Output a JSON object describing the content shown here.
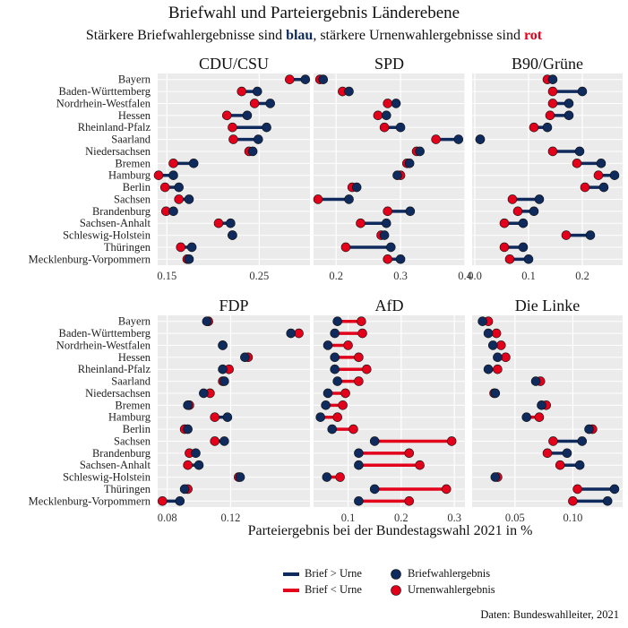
{
  "title": "Briefwahl und Parteiergebnis Länderebene",
  "subtitle": {
    "prefix": "Stärkere Briefwahlergebnisse sind ",
    "blue_word": "blau",
    "middle": ", stärkere Urnenwahlergebnisse sind ",
    "red_word": "rot"
  },
  "caption": "Daten: Bundeswahlleiter, 2021",
  "legend": {
    "line_blue_label": "Brief > Urne",
    "line_red_label": "Brief < Urne",
    "point_blue_label": "Briefwahlergebnis",
    "point_red_label": "Urnenwahlergebnis"
  },
  "colors": {
    "brief": "#0f2a5c",
    "urne": "#e3001b",
    "panel_bg": "#ebebeb",
    "grid": "#ffffff"
  },
  "chart_data": {
    "type": "dumbbell",
    "xlabel": "Parteiergebnis bei der Bundestagswahl 2021 in %",
    "states": [
      "Bayern",
      "Baden-Württemberg",
      "Nordrhein-Westfalen",
      "Hessen",
      "Rheinland-Pfalz",
      "Saarland",
      "Niedersachsen",
      "Bremen",
      "Hamburg",
      "Berlin",
      "Sachsen",
      "Brandenburg",
      "Sachsen-Anhalt",
      "Schleswig-Holstein",
      "Thüringen",
      "Mecklenburg-Vorpommern"
    ],
    "panels": [
      {
        "name": "CDU/CSU",
        "xlim": [
          0.14,
          0.305
        ],
        "ticks": [
          0.15,
          0.25
        ],
        "tick_labels": [
          "0.15",
          "0.25"
        ],
        "brief": [
          0.3,
          0.248,
          0.262,
          0.237,
          0.258,
          0.249,
          0.243,
          0.179,
          0.157,
          0.163,
          0.174,
          0.157,
          0.219,
          0.221,
          0.177,
          0.174
        ],
        "urne": [
          0.283,
          0.231,
          0.245,
          0.215,
          0.221,
          0.222,
          0.239,
          0.157,
          0.141,
          0.148,
          0.163,
          0.149,
          0.206,
          0.221,
          0.165,
          0.172
        ]
      },
      {
        "name": "SPD",
        "xlim": [
          0.165,
          0.4
        ],
        "ticks": [
          0.2,
          0.3,
          0.4
        ],
        "tick_labels": [
          "0.2",
          "0.3",
          "0.4"
        ],
        "brief": [
          0.18,
          0.22,
          0.293,
          0.278,
          0.3,
          0.39,
          0.33,
          0.314,
          0.295,
          0.232,
          0.22,
          0.315,
          0.278,
          0.275,
          0.285,
          0.3
        ],
        "urne": [
          0.175,
          0.21,
          0.28,
          0.265,
          0.275,
          0.355,
          0.325,
          0.31,
          0.3,
          0.225,
          0.172,
          0.28,
          0.238,
          0.27,
          0.215,
          0.28
        ]
      },
      {
        "name": "B90/Grüne",
        "xlim": [
          -0.005,
          0.275
        ],
        "ticks": [
          0.0,
          0.1,
          0.2
        ],
        "tick_labels": [
          "0.0",
          "0.1",
          "0.2"
        ],
        "brief": [
          0.145,
          0.2,
          0.175,
          0.175,
          0.135,
          0.01,
          0.195,
          0.235,
          0.26,
          0.24,
          0.12,
          0.11,
          0.09,
          0.215,
          0.09,
          0.1
        ],
        "urne": [
          0.135,
          0.145,
          0.145,
          0.14,
          0.11,
          0.01,
          0.145,
          0.19,
          0.23,
          0.205,
          0.07,
          0.08,
          0.055,
          0.17,
          0.055,
          0.065
        ]
      }
    ],
    "panels_row2": [
      {
        "name": "FDP",
        "xlim": [
          0.074,
          0.17
        ],
        "ticks": [
          0.08,
          0.12
        ],
        "tick_labels": [
          "0.08",
          "0.12"
        ],
        "brief": [
          0.105,
          0.158,
          0.115,
          0.129,
          0.115,
          0.116,
          0.103,
          0.093,
          0.118,
          0.093,
          0.116,
          0.098,
          0.1,
          0.126,
          0.091,
          0.088
        ],
        "urne": [
          0.106,
          0.163,
          0.115,
          0.131,
          0.119,
          0.115,
          0.107,
          0.094,
          0.11,
          0.091,
          0.11,
          0.094,
          0.093,
          0.125,
          0.093,
          0.077
        ]
      },
      {
        "name": "AfD",
        "xlim": [
          0.035,
          0.32
        ],
        "ticks": [
          0.1,
          0.2,
          0.3
        ],
        "tick_labels": [
          "0.1",
          "0.2",
          "0.3"
        ],
        "brief": [
          0.08,
          0.075,
          0.062,
          0.075,
          0.075,
          0.08,
          0.062,
          0.058,
          0.048,
          0.07,
          0.15,
          0.12,
          0.12,
          0.06,
          0.15,
          0.12
        ],
        "urne": [
          0.125,
          0.127,
          0.1,
          0.12,
          0.135,
          0.12,
          0.095,
          0.09,
          0.08,
          0.11,
          0.295,
          0.215,
          0.235,
          0.085,
          0.285,
          0.215
        ]
      },
      {
        "name": "Die Linke",
        "xlim": [
          0.013,
          0.143
        ],
        "ticks": [
          0.05,
          0.1
        ],
        "tick_labels": [
          "0.05",
          "0.10"
        ],
        "brief": [
          0.022,
          0.027,
          0.031,
          0.035,
          0.027,
          0.068,
          0.033,
          0.073,
          0.06,
          0.114,
          0.108,
          0.095,
          0.106,
          0.033,
          0.136,
          0.13
        ],
        "urne": [
          0.027,
          0.034,
          0.038,
          0.042,
          0.035,
          0.072,
          0.032,
          0.077,
          0.071,
          0.117,
          0.083,
          0.078,
          0.089,
          0.035,
          0.104,
          0.1
        ]
      }
    ]
  }
}
